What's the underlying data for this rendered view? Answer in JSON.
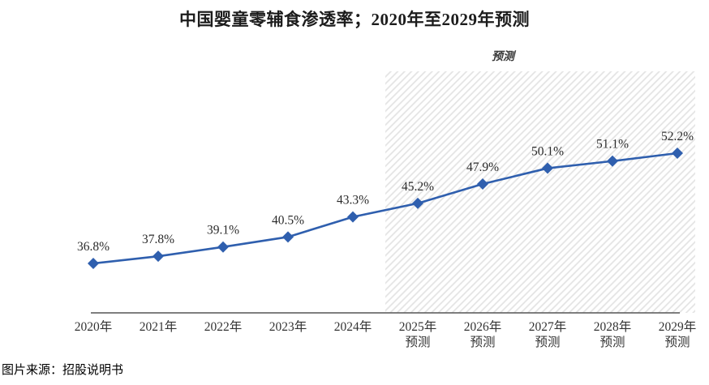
{
  "page": {
    "source_note": "图片来源：招股说明书"
  },
  "chart_data": {
    "type": "line",
    "title": "中国婴童零辅食渗透率；2020年至2029年预测",
    "categories": [
      "2020年",
      "2021年",
      "2022年",
      "2023年",
      "2024年",
      "2025年",
      "2026年",
      "2027年",
      "2028年",
      "2029年"
    ],
    "category_sublabels": [
      "",
      "",
      "",
      "",
      "",
      "预测",
      "预测",
      "预测",
      "预测",
      "预测"
    ],
    "values": [
      36.8,
      37.8,
      39.1,
      40.5,
      43.3,
      45.2,
      47.9,
      50.1,
      51.1,
      52.2
    ],
    "point_labels": [
      "36.8%",
      "37.8%",
      "39.1%",
      "40.5%",
      "43.3%",
      "45.2%",
      "47.9%",
      "50.1%",
      "51.1%",
      "52.2%"
    ],
    "forecast_region_label": "预测",
    "forecast_start_index": 5,
    "xlabel": "",
    "ylabel": "",
    "ylim": [
      30,
      65
    ],
    "grid": false,
    "legend": false,
    "colors": {
      "line": "#2f5fae",
      "marker": "#2f5fae",
      "point_label": "#2b2b2b",
      "tick_label": "#333333",
      "axis": "#555555",
      "hatch_line": "#e3e3e3"
    }
  }
}
